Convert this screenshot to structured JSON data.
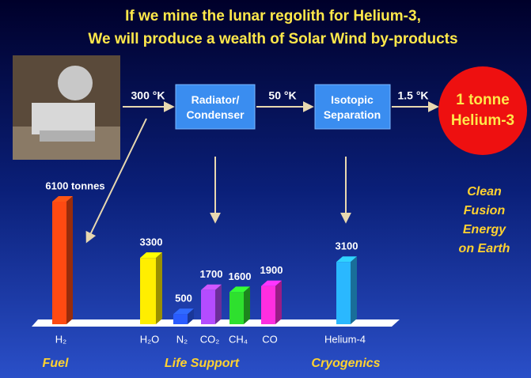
{
  "title_lines": [
    "If we mine the lunar regolith for Helium-3,",
    "We will produce a wealth of Solar Wind by-products"
  ],
  "process": {
    "temps": [
      "300 °K",
      "50 °K",
      "1.5 °K"
    ],
    "steps": [
      "Radiator/ Condenser",
      "Isotopic Separation"
    ],
    "product": "1 tonne Helium-3",
    "outcome": "Clean Fusion Energy on Earth"
  },
  "chart_data": {
    "type": "bar",
    "categories": [
      "H₂",
      "H₂O",
      "N₂",
      "CO₂",
      "CH₄",
      "CO",
      "Helium-4"
    ],
    "values": [
      6100,
      3300,
      500,
      1700,
      1600,
      1900,
      3100
    ],
    "value_labels": [
      "6100 tonnes",
      "3300",
      "500",
      "1700",
      "1600",
      "1900",
      "3100"
    ],
    "colors": [
      "#ff4a12",
      "#ffee00",
      "#2a5cff",
      "#b44cff",
      "#2ee02e",
      "#ff2ee0",
      "#2ab8ff"
    ],
    "groups": [
      "Fuel",
      "Life Support",
      "Cryogenics"
    ]
  }
}
